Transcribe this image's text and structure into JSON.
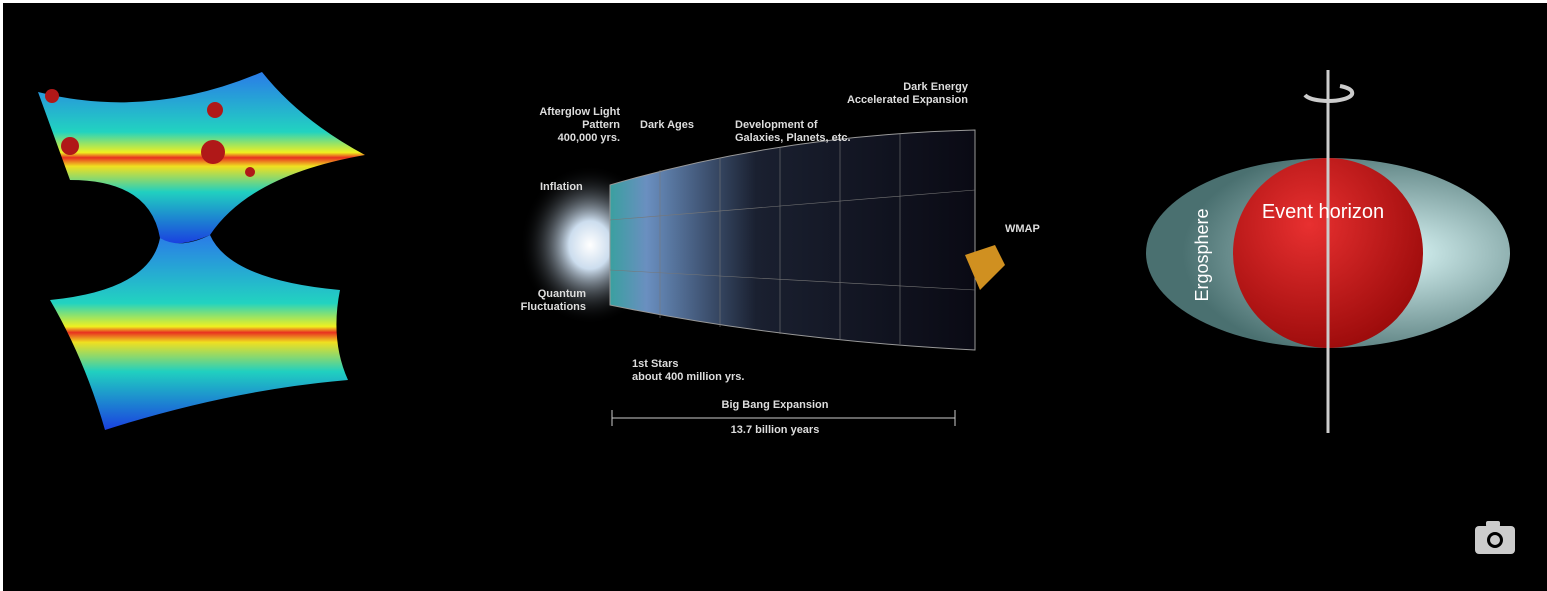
{
  "universe": {
    "afterglow": [
      "Afterglow Light",
      "Pattern",
      "400,000 yrs."
    ],
    "dark_ages": [
      "Dark Ages"
    ],
    "development": [
      "Development of",
      "Galaxies, Planets, etc."
    ],
    "dark_energy": [
      "Dark Energy",
      "Accelerated Expansion"
    ],
    "inflation": [
      "Inflation"
    ],
    "wmap": [
      "WMAP"
    ],
    "quantum": [
      "Quantum",
      "Fluctuations"
    ],
    "first_stars": [
      "1st Stars",
      "about 400 million yrs."
    ],
    "expansion": [
      "Big Bang Expansion"
    ],
    "age": [
      "13.7 billion years"
    ]
  },
  "black_hole": {
    "ergosphere": "Ergosphere",
    "event_horizon": "Event horizon"
  }
}
